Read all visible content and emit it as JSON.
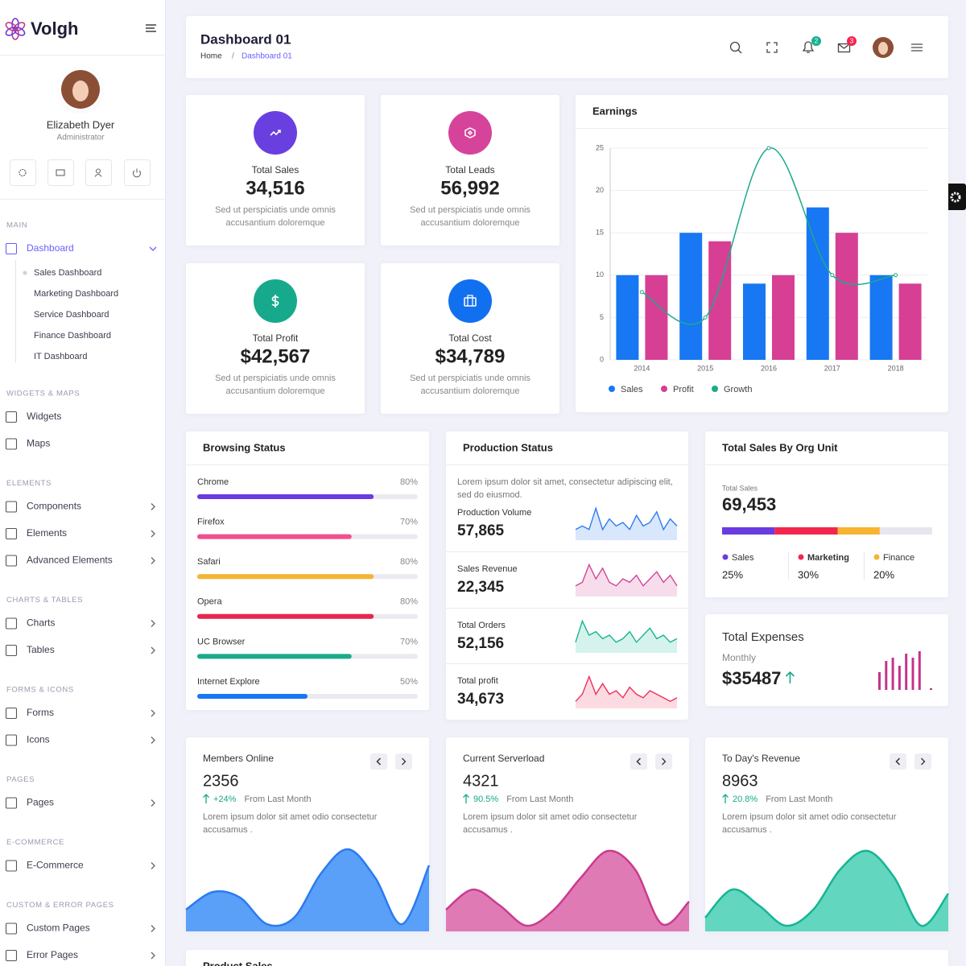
{
  "sidebar": {
    "brand": "Volgh",
    "user": {
      "name": "Elizabeth Dyer",
      "role": "Administrator"
    },
    "sections": [
      {
        "title": "MAIN",
        "items": [
          {
            "label": "Dashboard",
            "children": [
              "Sales Dashboard",
              "Marketing Dashboard",
              "Service Dashboard",
              "Finance Dashboard",
              "IT Dashboard"
            ]
          }
        ]
      },
      {
        "title": "WIDGETS & MAPS",
        "items": [
          {
            "label": "Widgets"
          },
          {
            "label": "Maps"
          }
        ]
      },
      {
        "title": "ELEMENTS",
        "items": [
          {
            "label": "Components"
          },
          {
            "label": "Elements"
          },
          {
            "label": "Advanced Elements"
          }
        ]
      },
      {
        "title": "CHARTS & TABLES",
        "items": [
          {
            "label": "Charts"
          },
          {
            "label": "Tables"
          }
        ]
      },
      {
        "title": "FORMS & ICONS",
        "items": [
          {
            "label": "Forms"
          },
          {
            "label": "Icons"
          }
        ]
      },
      {
        "title": "PAGES",
        "items": [
          {
            "label": "Pages"
          }
        ]
      },
      {
        "title": "E-COMMERCE",
        "items": [
          {
            "label": "E-Commerce"
          }
        ]
      },
      {
        "title": "CUSTOM & ERROR PAGES",
        "items": [
          {
            "label": "Custom Pages"
          },
          {
            "label": "Error Pages"
          }
        ]
      }
    ]
  },
  "header": {
    "title": "Dashboard 01",
    "breadcrumb": [
      "Home",
      "Dashboard 01"
    ],
    "breadcrumb_separator": "/",
    "notifications": "2",
    "messages": "3"
  },
  "stats": [
    {
      "label": "Total Sales",
      "value": "34,516",
      "desc": [
        "Sed ut perspiciatis unde omnis",
        "accusantium doloremque"
      ],
      "color": "#6a3fe0"
    },
    {
      "label": "Total Leads",
      "value": "56,992",
      "desc": [
        "Sed ut perspiciatis unde omnis",
        "accusantium doloremque"
      ],
      "color": "#d6439a"
    },
    {
      "label": "Total Profit",
      "value": "$42,567",
      "desc": [
        "Sed ut perspiciatis unde omnis",
        "accusantium doloremque"
      ],
      "color": "#17a98c"
    },
    {
      "label": "Total Cost",
      "value": "$34,789",
      "desc": [
        "Sed ut perspiciatis unde omnis",
        "accusantium doloremque"
      ],
      "color": "#1170f0"
    }
  ],
  "earnings": {
    "type": "bar",
    "title": "Earnings",
    "categories": [
      "2014",
      "2015",
      "2016",
      "2017",
      "2018"
    ],
    "series": [
      {
        "name": "Sales",
        "color": "#1877f2",
        "values": [
          10,
          15,
          9,
          18,
          10
        ]
      },
      {
        "name": "Profit",
        "color": "#d63f94",
        "values": [
          10,
          14,
          10,
          15,
          9
        ]
      },
      {
        "name": "Growth",
        "type": "line",
        "color": "#1aab8b",
        "values": [
          8,
          5,
          25,
          10,
          10
        ]
      }
    ],
    "ylim": [
      0,
      25
    ],
    "yticks": [
      0,
      5,
      10,
      15,
      20,
      25
    ],
    "grid": true
  },
  "browsing": {
    "title": "Browsing Status",
    "items": [
      {
        "name": "Chrome",
        "value": 80,
        "label": "80%",
        "color": "#6a3be0"
      },
      {
        "name": "Firefox",
        "value": 70,
        "label": "70%",
        "color": "#f0508f"
      },
      {
        "name": "Safari",
        "value": 80,
        "label": "80%",
        "color": "#f6b431"
      },
      {
        "name": "Opera",
        "value": 80,
        "label": "80%",
        "color": "#e8264d"
      },
      {
        "name": "UC Browser",
        "value": 70,
        "label": "70%",
        "color": "#1aab8b"
      },
      {
        "name": "Internet Explore",
        "value": 50,
        "label": "50%",
        "color": "#1877f2"
      }
    ]
  },
  "production": {
    "title": "Production Status",
    "desc": [
      "Lorem ipsum dolor sit amet, consectetur adipiscing elit,",
      "sed do eiusmod."
    ],
    "ylim": [
      0,
      10
    ],
    "items": [
      {
        "label": "Production Volume",
        "value": "57,865",
        "color": "#2f7cf0",
        "values": [
          3,
          4,
          3,
          9,
          3,
          6,
          4,
          5,
          3,
          7,
          4,
          5,
          8,
          3,
          6,
          4
        ]
      },
      {
        "label": "Sales Revenue",
        "value": "22,345",
        "color": "#d04595",
        "values": [
          3,
          4,
          9,
          5,
          8,
          4,
          3,
          5,
          4,
          6,
          3,
          5,
          7,
          4,
          6,
          3
        ]
      },
      {
        "label": "Total Orders",
        "value": "52,156",
        "color": "#16b593",
        "values": [
          3,
          9,
          5,
          6,
          4,
          5,
          3,
          4,
          6,
          3,
          5,
          7,
          4,
          5,
          3,
          4
        ]
      },
      {
        "label": "Total profit",
        "value": "34,673",
        "color": "#ee3158",
        "values": [
          2,
          4,
          9,
          4,
          7,
          4,
          5,
          3,
          6,
          4,
          3,
          5,
          4,
          3,
          2,
          3
        ]
      }
    ]
  },
  "org_unit": {
    "title": "Total Sales By Org Unit",
    "caption": "Total Sales",
    "value": "69,453",
    "segments": [
      {
        "name": "Sales",
        "value": 25,
        "label": "25%",
        "color": "#6a3be0"
      },
      {
        "name": "Marketing",
        "value": 30,
        "label": "30%",
        "color": "#f1264f"
      },
      {
        "name": "Finance",
        "value": 20,
        "label": "20%",
        "color": "#f6b431"
      }
    ]
  },
  "expenses": {
    "title": "Total Expenses",
    "period": "Monthly",
    "value": "$35487",
    "color": "#c4338a",
    "ylim": [
      0,
      50
    ],
    "values": [
      22,
      36,
      40,
      30,
      45,
      40,
      48,
      2
    ]
  },
  "cards": [
    {
      "title": "Members Online",
      "value": "2356",
      "change": "+24%",
      "change_text": "From Last Month",
      "desc": [
        "Lorem ipsum dolor sit amet odio consectetur",
        "accusamus ."
      ],
      "fill": "#5aa0f8",
      "stroke": "#2b7bf0",
      "ylim": [
        0,
        105
      ],
      "values": [
        27,
        49,
        42,
        9,
        17,
        72,
        102,
        67,
        9,
        82
      ]
    },
    {
      "title": "Current Serverload",
      "value": "4321",
      "change": "90.5%",
      "change_text": "From Last Month",
      "desc": [
        "Lorem ipsum dolor sit amet odio consectetur",
        "accusamus ."
      ],
      "fill": "#e07ab5",
      "stroke": "#c93c8e",
      "ylim": [
        0,
        105
      ],
      "values": [
        27,
        52,
        32,
        7,
        27,
        67,
        100,
        77,
        9,
        37
      ]
    },
    {
      "title": "To Day's Revenue",
      "value": "8963",
      "change": "20.8%",
      "change_text": "From Last Month",
      "desc": [
        "Lorem ipsum dolor sit amet odio consectetur",
        "accusamus ."
      ],
      "fill": "#62d6bf",
      "stroke": "#16b593",
      "ylim": [
        0,
        105
      ],
      "values": [
        17,
        52,
        32,
        7,
        27,
        77,
        100,
        67,
        7,
        47
      ]
    }
  ],
  "product_sales": {
    "title": "Product Sales"
  }
}
